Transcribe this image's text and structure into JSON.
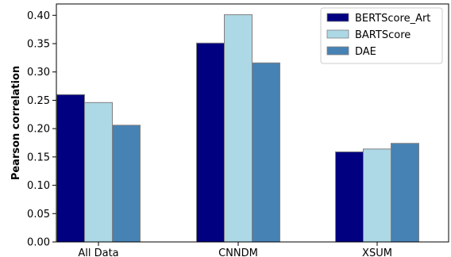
{
  "chart_data": {
    "type": "bar",
    "categories": [
      "All Data",
      "CNNDM",
      "XSUM"
    ],
    "series": [
      {
        "name": "BERTScore_Art",
        "values": [
          0.26,
          0.351,
          0.159
        ],
        "color": "#000080"
      },
      {
        "name": "BARTScore",
        "values": [
          0.246,
          0.401,
          0.164
        ],
        "color": "#add8e6"
      },
      {
        "name": "DAE",
        "values": [
          0.206,
          0.316,
          0.174
        ],
        "color": "#4682b4"
      }
    ],
    "title": "",
    "xlabel": "",
    "ylabel": "Pearson correlation",
    "ylim": [
      0,
      0.42
    ],
    "yticks": [
      "0.00",
      "0.05",
      "0.10",
      "0.15",
      "0.20",
      "0.25",
      "0.30",
      "0.35",
      "0.40"
    ],
    "ytick_values": [
      0,
      0.05,
      0.1,
      0.15,
      0.2,
      0.25,
      0.3,
      0.35,
      0.4
    ],
    "grid": false,
    "legend_position": "top-right",
    "bar_edge_color": "#808080"
  }
}
